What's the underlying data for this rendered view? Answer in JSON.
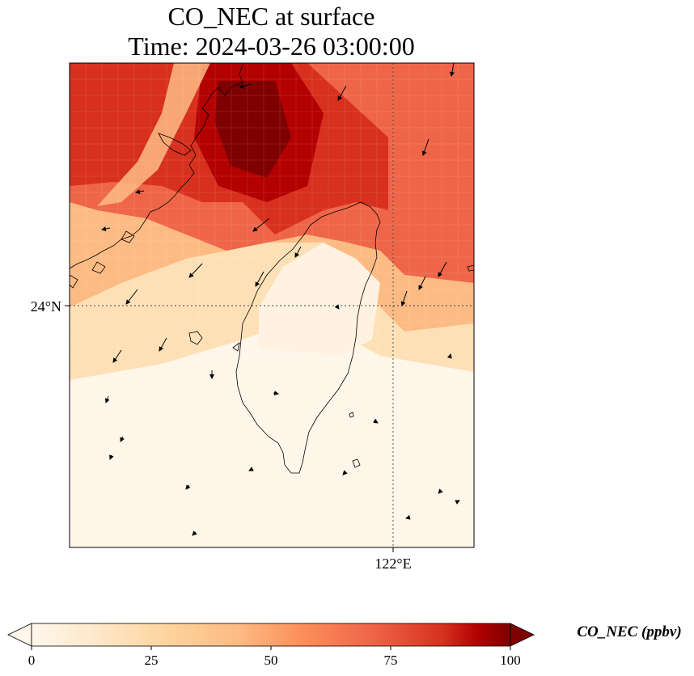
{
  "title": {
    "line1": "CO_NEC at surface",
    "line2": "Time: 2024-03-26 03:00:00"
  },
  "map": {
    "lat_label": "24°N",
    "lon_label": "122°E",
    "field_colors": {
      "min": "#fff7ec",
      "low": "#fdd49e",
      "mid": "#fc8d59",
      "high": "#d7301f",
      "max": "#7f0000"
    }
  },
  "colorbar": {
    "label": "CO_NEC (ppbv)",
    "ticks": [
      "0",
      "25",
      "50",
      "75",
      "100"
    ],
    "min": 0,
    "max": 100,
    "extend": "both",
    "colormap": "OrRd",
    "stops": [
      {
        "value": 0,
        "color": "#fff7ec"
      },
      {
        "value": 14,
        "color": "#fee8c8"
      },
      {
        "value": 28,
        "color": "#fdd49e"
      },
      {
        "value": 43,
        "color": "#fdbb84"
      },
      {
        "value": 57,
        "color": "#fc8d59"
      },
      {
        "value": 71,
        "color": "#ef6548"
      },
      {
        "value": 86,
        "color": "#d7301f"
      },
      {
        "value": 93,
        "color": "#b30000"
      },
      {
        "value": 100,
        "color": "#7f0000"
      }
    ]
  }
}
